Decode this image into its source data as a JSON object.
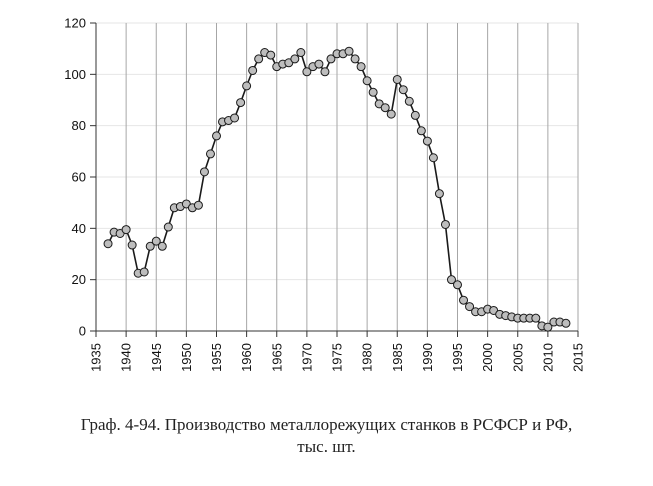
{
  "caption": {
    "line1": "Граф. 4-94. Производство металлорежущих станков в РСФСР и РФ,",
    "line2": "тыс. шт."
  },
  "chart_data": {
    "type": "line",
    "title": "",
    "xlabel": "",
    "ylabel": "",
    "xlim": [
      1935,
      2015
    ],
    "ylim": [
      0,
      120
    ],
    "x_ticks": [
      "1935",
      "1940",
      "1945",
      "1950",
      "1955",
      "1960",
      "1965",
      "1970",
      "1975",
      "1980",
      "1985",
      "1990",
      "1995",
      "2000",
      "2005",
      "2010",
      "2015"
    ],
    "y_ticks": [
      "0",
      "20",
      "40",
      "60",
      "80",
      "100",
      "120"
    ],
    "vertical_grid": true,
    "horizontal_grid": true,
    "marker": "circle",
    "line_color": "#1a1a1a",
    "marker_fill": "#bdbdbd",
    "series": [
      {
        "x": [
          1937,
          1938,
          1939,
          1940,
          1941,
          1942,
          1943,
          1944,
          1945,
          1946,
          1947,
          1948,
          1949,
          1950,
          1951,
          1952,
          1953,
          1954,
          1955,
          1956,
          1957,
          1958,
          1959,
          1960,
          1961,
          1962,
          1963,
          1964,
          1965,
          1966,
          1967,
          1968,
          1969,
          1970,
          1971,
          1972,
          1973,
          1974,
          1975,
          1976,
          1977,
          1978,
          1979,
          1980,
          1981,
          1982,
          1983,
          1984,
          1985,
          1986,
          1987,
          1988,
          1989,
          1990,
          1991,
          1992,
          1993,
          1994,
          1995,
          1996,
          1997,
          1998,
          1999,
          2000,
          2001,
          2002,
          2003,
          2004,
          2005,
          2006,
          2007,
          2008,
          2009,
          2010,
          2011,
          2012,
          2013
        ],
        "values": [
          34,
          38.5,
          38,
          39.5,
          33.5,
          22.5,
          23,
          33,
          35,
          33,
          40.5,
          48,
          48.5,
          49.5,
          48,
          49,
          62,
          69,
          76,
          81.5,
          82,
          83,
          89,
          95.5,
          101.5,
          106,
          108.5,
          107.5,
          103,
          104,
          104.5,
          106,
          108.5,
          101,
          103,
          104,
          101,
          106,
          108,
          108,
          109,
          106,
          103,
          97.5,
          93,
          88.5,
          87,
          84.5,
          98,
          94,
          89.5,
          84,
          78,
          74,
          67.5,
          53.5,
          41.5,
          20,
          18,
          12,
          9.5,
          7.5,
          7.5,
          8.5,
          8,
          6.5,
          6,
          5.5,
          5,
          5,
          5,
          5,
          2,
          1.5,
          3.5,
          3.5,
          3
        ]
      }
    ]
  }
}
